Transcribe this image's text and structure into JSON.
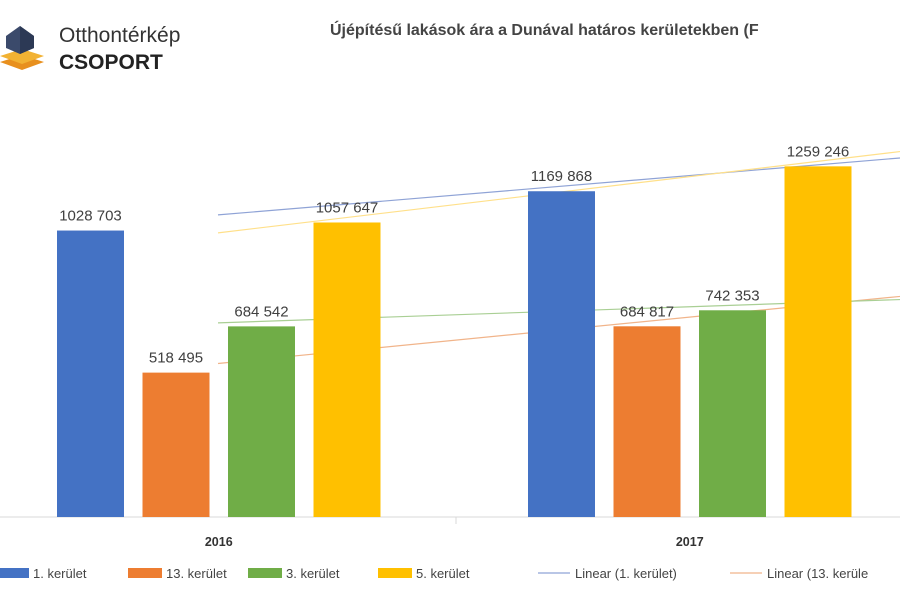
{
  "logo": {
    "line1": "Otthontérkép",
    "line2": "CSOPORT",
    "icon": "house-icon",
    "colors": {
      "roof": "#3b4a6b",
      "base_top": "#f2b233",
      "base": "#e8901e"
    }
  },
  "chart_data": {
    "type": "bar",
    "title": "Újépítésű lakások ára a Dunával határos kerületekben (F",
    "categories": [
      "2016",
      "2017"
    ],
    "series": [
      {
        "name": "1. kerület",
        "color": "#4472c4",
        "values": [
          1028703,
          1169868
        ],
        "labels": [
          "1028 703",
          "1169 868"
        ]
      },
      {
        "name": "13. kerület",
        "color": "#ed7d31",
        "values": [
          518495,
          684817
        ],
        "labels": [
          "518 495",
          "684 817"
        ]
      },
      {
        "name": "3. kerület",
        "color": "#70ad47",
        "values": [
          684542,
          742353
        ],
        "labels": [
          "684 542",
          "742 353"
        ]
      },
      {
        "name": "5. kerület",
        "color": "#ffc000",
        "values": [
          1057647,
          1259246
        ],
        "labels": [
          "1057 647",
          "1259 246"
        ]
      }
    ],
    "trendlines": [
      {
        "name": "Linear (1. kerület)",
        "series": "1. kerület",
        "color": "#8fa3d6"
      },
      {
        "name": "Linear (13. kerüle",
        "series": "13. kerület",
        "color": "#f1b48a"
      },
      {
        "name": "",
        "series": "3. kerület",
        "color": "#a9cf94"
      },
      {
        "name": "",
        "series": "5. kerület",
        "color": "#ffe08a"
      }
    ],
    "ylim": [
      0,
      1400000
    ],
    "xlabel": "",
    "ylabel": "",
    "grid": false,
    "legend": "bottom"
  }
}
